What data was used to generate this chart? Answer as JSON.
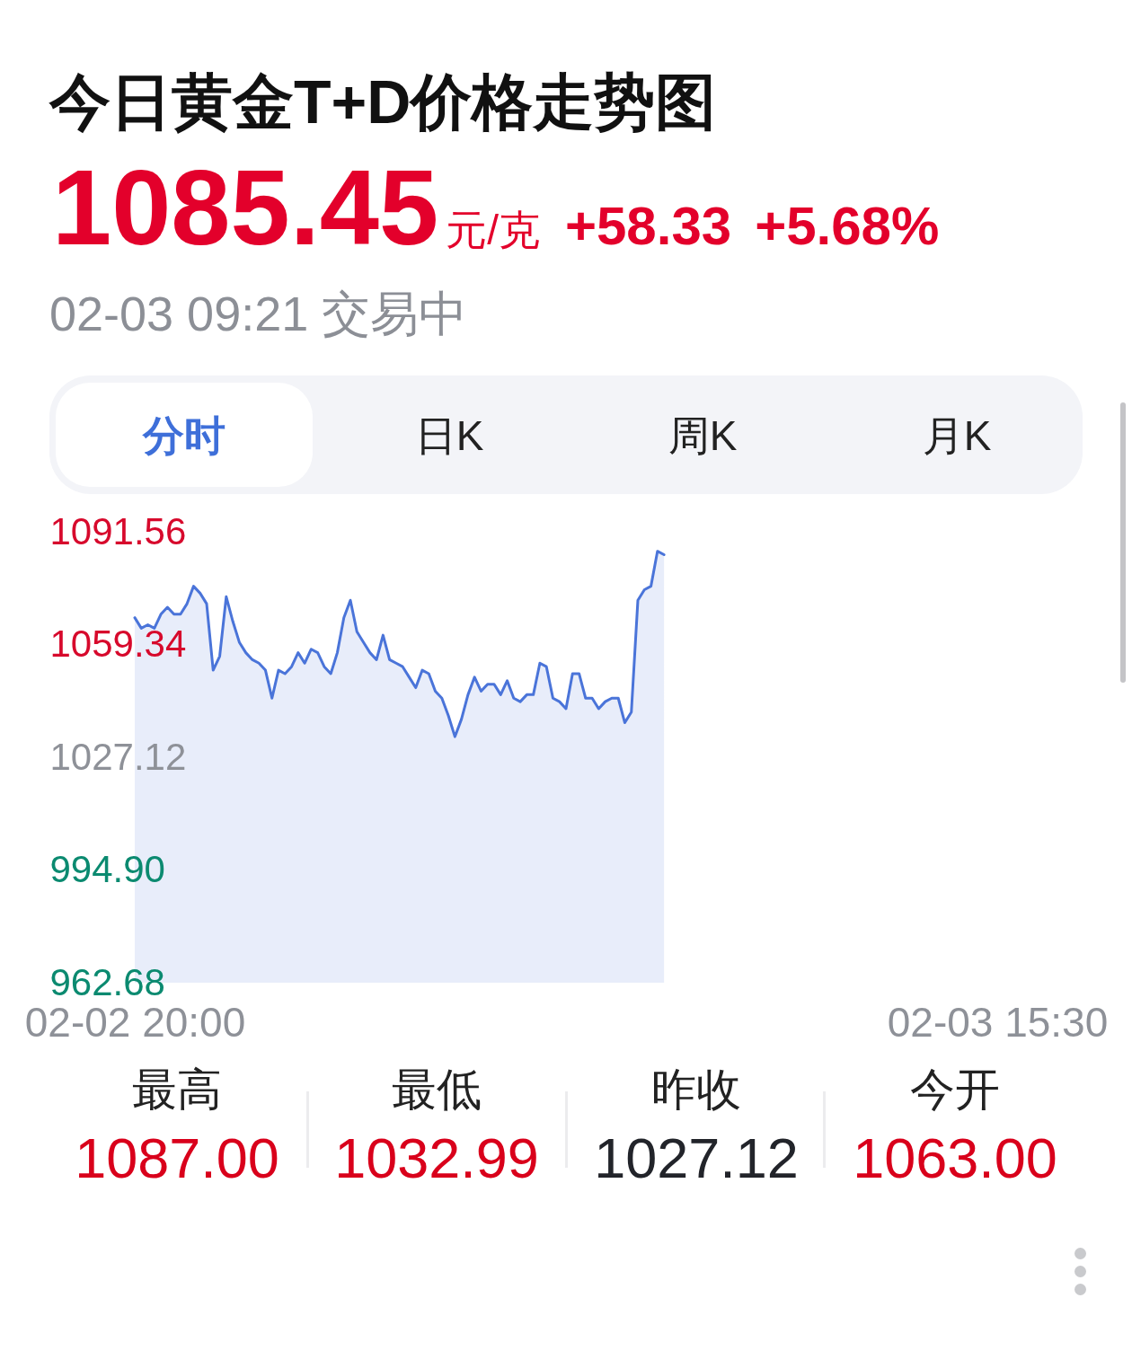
{
  "chart_data": {
    "type": "area",
    "title": "今日黄金T+D价格走势图",
    "annotations": [
      "1085.45",
      "元/克",
      "+58.33",
      "+5.68%",
      "02-03 09:21 交易中",
      "分时",
      "日K",
      "周K",
      "月K",
      "最高",
      "1087.00",
      "最低",
      "1032.99",
      "昨收",
      "1027.12",
      "今开",
      "1063.00"
    ],
    "categories": [
      "02-02 20:00",
      null,
      null,
      null,
      null,
      null,
      null,
      null,
      null,
      null,
      null,
      null,
      null,
      null,
      null,
      null,
      null,
      null,
      null,
      null,
      null,
      null,
      null,
      null,
      null,
      null,
      null,
      null,
      null,
      null,
      null,
      null,
      null,
      null,
      null,
      null,
      null,
      null,
      null,
      null,
      null,
      null,
      null,
      null,
      null,
      null,
      null,
      null,
      null,
      null,
      null,
      null,
      null,
      null,
      null,
      null,
      null,
      null,
      null,
      null,
      null,
      null,
      null,
      null,
      null,
      null,
      null,
      null,
      null,
      null,
      null,
      null,
      null,
      null,
      null,
      null,
      null,
      null,
      null,
      null,
      null,
      null,
      null,
      null,
      null,
      null,
      null,
      null,
      null,
      null,
      null,
      null,
      null,
      null,
      null,
      null,
      null,
      null,
      null,
      null,
      null,
      null,
      null,
      null,
      null,
      null,
      null,
      null,
      null,
      null,
      null,
      null,
      null,
      null,
      null,
      null,
      null,
      null,
      null,
      null,
      null,
      null,
      null,
      null,
      null,
      null,
      null,
      null,
      null,
      null,
      null,
      null,
      "02-03 15:30"
    ],
    "ylim": [
      962.68,
      1091.56
    ],
    "yticks": [
      962.68,
      {
        "value": 994.9,
        "label": "994.90"
      },
      1027.12,
      1059.34,
      1091.56
    ],
    "grid": false,
    "series": [
      {
        "color": "#4a74d9",
        "values": [
          1067,
          1064,
          1065,
          1064,
          1068,
          1070,
          1068,
          1068,
          1071,
          1076,
          1074,
          1071,
          1052,
          1056,
          1073,
          1066,
          1060,
          1057,
          1055,
          1054,
          1052,
          1044,
          1052,
          1051,
          1053,
          1057,
          1054,
          1058,
          1057,
          1053,
          1051,
          1057,
          1067,
          1072,
          1063,
          1060,
          1057,
          1055,
          1062,
          1055,
          1054,
          1053,
          1050,
          1047,
          1052,
          1051,
          1046,
          1044,
          1039,
          1033,
          1038,
          1045,
          1050,
          1046,
          1048,
          1048,
          1045,
          1049,
          1044,
          1043,
          1045,
          1045,
          1054,
          1053,
          1044,
          1043,
          1041,
          1051,
          1051,
          1044,
          1044,
          1041,
          1043,
          1044,
          1044,
          1037,
          1040,
          1072,
          1075,
          1076,
          1086,
          1085,
          null,
          null,
          null,
          null,
          null,
          null,
          null,
          null,
          null,
          null,
          null,
          null,
          null,
          null,
          null,
          null,
          null,
          null,
          null,
          null,
          null,
          null,
          null,
          null,
          null,
          null,
          null,
          null,
          null,
          null,
          null,
          null,
          null,
          null,
          null,
          null,
          null,
          null,
          null,
          null,
          null,
          null,
          null,
          null,
          null,
          null,
          null,
          null,
          null,
          null,
          null
        ]
      }
    ]
  }
}
